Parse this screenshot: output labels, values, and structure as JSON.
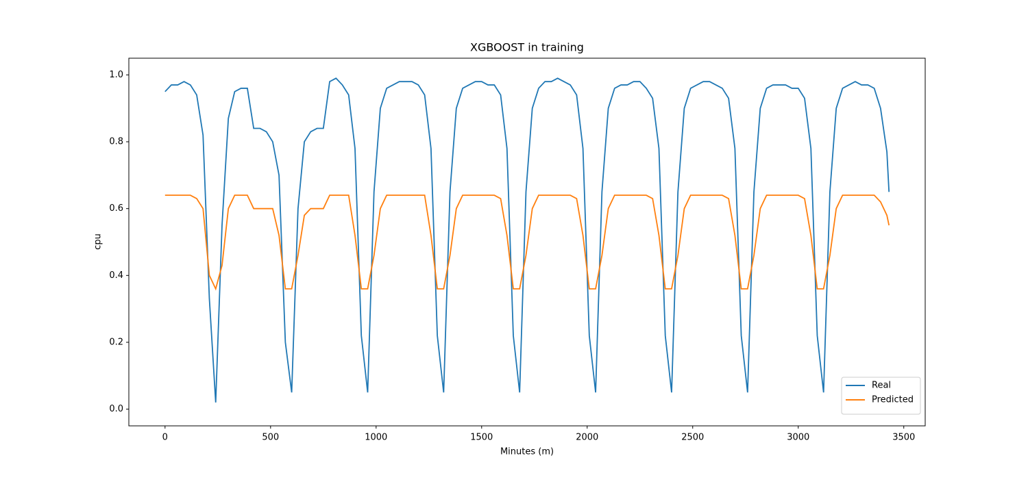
{
  "chart_data": {
    "type": "line",
    "title": "XGBOOST in training",
    "x_label": "Minutes (m)",
    "y_label": "cpu",
    "x": [
      0,
      30,
      60,
      90,
      120,
      150,
      180,
      210,
      240,
      270,
      300,
      330,
      360,
      390,
      420,
      450,
      480,
      510,
      540,
      570,
      600,
      630,
      660,
      690,
      720,
      750,
      780,
      810,
      840,
      870,
      900,
      930,
      960,
      990,
      1020,
      1050,
      1080,
      1110,
      1140,
      1170,
      1200,
      1230,
      1260,
      1290,
      1320,
      1350,
      1380,
      1410,
      1440,
      1470,
      1500,
      1530,
      1560,
      1590,
      1620,
      1650,
      1680,
      1710,
      1740,
      1770,
      1800,
      1830,
      1860,
      1890,
      1920,
      1950,
      1980,
      2010,
      2040,
      2070,
      2100,
      2130,
      2160,
      2190,
      2220,
      2250,
      2280,
      2310,
      2340,
      2370,
      2400,
      2430,
      2460,
      2490,
      2520,
      2550,
      2580,
      2610,
      2640,
      2670,
      2700,
      2730,
      2760,
      2790,
      2820,
      2850,
      2880,
      2910,
      2940,
      2970,
      3000,
      3030,
      3060,
      3090,
      3120,
      3150,
      3180,
      3210,
      3240,
      3270,
      3300,
      3330,
      3360,
      3390,
      3420,
      3430
    ],
    "series": [
      {
        "name": "Real",
        "color": "#1f77b4",
        "values": [
          0.95,
          0.97,
          0.97,
          0.98,
          0.97,
          0.94,
          0.82,
          0.33,
          0.02,
          0.55,
          0.87,
          0.95,
          0.96,
          0.96,
          0.84,
          0.84,
          0.83,
          0.8,
          0.7,
          0.2,
          0.05,
          0.6,
          0.8,
          0.83,
          0.84,
          0.84,
          0.98,
          0.99,
          0.97,
          0.94,
          0.78,
          0.22,
          0.05,
          0.65,
          0.9,
          0.96,
          0.97,
          0.98,
          0.98,
          0.98,
          0.97,
          0.94,
          0.78,
          0.22,
          0.05,
          0.65,
          0.9,
          0.96,
          0.97,
          0.98,
          0.98,
          0.97,
          0.97,
          0.94,
          0.78,
          0.22,
          0.05,
          0.65,
          0.9,
          0.96,
          0.98,
          0.98,
          0.99,
          0.98,
          0.97,
          0.94,
          0.78,
          0.22,
          0.05,
          0.65,
          0.9,
          0.96,
          0.97,
          0.97,
          0.98,
          0.98,
          0.96,
          0.93,
          0.78,
          0.22,
          0.05,
          0.65,
          0.9,
          0.96,
          0.97,
          0.98,
          0.98,
          0.97,
          0.96,
          0.93,
          0.78,
          0.22,
          0.05,
          0.65,
          0.9,
          0.96,
          0.97,
          0.97,
          0.97,
          0.96,
          0.96,
          0.93,
          0.78,
          0.22,
          0.05,
          0.65,
          0.9,
          0.96,
          0.97,
          0.98,
          0.97,
          0.97,
          0.96,
          0.9,
          0.77,
          0.65
        ]
      },
      {
        "name": "Predicted",
        "color": "#ff7f0e",
        "values": [
          0.64,
          0.64,
          0.64,
          0.64,
          0.64,
          0.63,
          0.6,
          0.4,
          0.36,
          0.43,
          0.6,
          0.64,
          0.64,
          0.64,
          0.6,
          0.6,
          0.6,
          0.6,
          0.52,
          0.36,
          0.36,
          0.46,
          0.58,
          0.6,
          0.6,
          0.6,
          0.64,
          0.64,
          0.64,
          0.64,
          0.52,
          0.36,
          0.36,
          0.46,
          0.6,
          0.64,
          0.64,
          0.64,
          0.64,
          0.64,
          0.64,
          0.64,
          0.52,
          0.36,
          0.36,
          0.46,
          0.6,
          0.64,
          0.64,
          0.64,
          0.64,
          0.64,
          0.64,
          0.63,
          0.52,
          0.36,
          0.36,
          0.46,
          0.6,
          0.64,
          0.64,
          0.64,
          0.64,
          0.64,
          0.64,
          0.63,
          0.52,
          0.36,
          0.36,
          0.46,
          0.6,
          0.64,
          0.64,
          0.64,
          0.64,
          0.64,
          0.64,
          0.63,
          0.52,
          0.36,
          0.36,
          0.46,
          0.6,
          0.64,
          0.64,
          0.64,
          0.64,
          0.64,
          0.64,
          0.63,
          0.52,
          0.36,
          0.36,
          0.46,
          0.6,
          0.64,
          0.64,
          0.64,
          0.64,
          0.64,
          0.64,
          0.63,
          0.52,
          0.36,
          0.36,
          0.46,
          0.6,
          0.64,
          0.64,
          0.64,
          0.64,
          0.64,
          0.64,
          0.62,
          0.58,
          0.55
        ]
      }
    ],
    "xlim": [
      -171.5,
      3601.5
    ],
    "xticks": [
      0,
      500,
      1000,
      1500,
      2000,
      2500,
      3000,
      3500
    ],
    "ylim": [
      -0.05,
      1.05
    ],
    "yticks": [
      {
        "value": 0,
        "label": "0.0"
      },
      0.2,
      0.4,
      0.6,
      0.8,
      {
        "value": 1,
        "label": "1.0"
      }
    ],
    "legend": "lower right"
  }
}
